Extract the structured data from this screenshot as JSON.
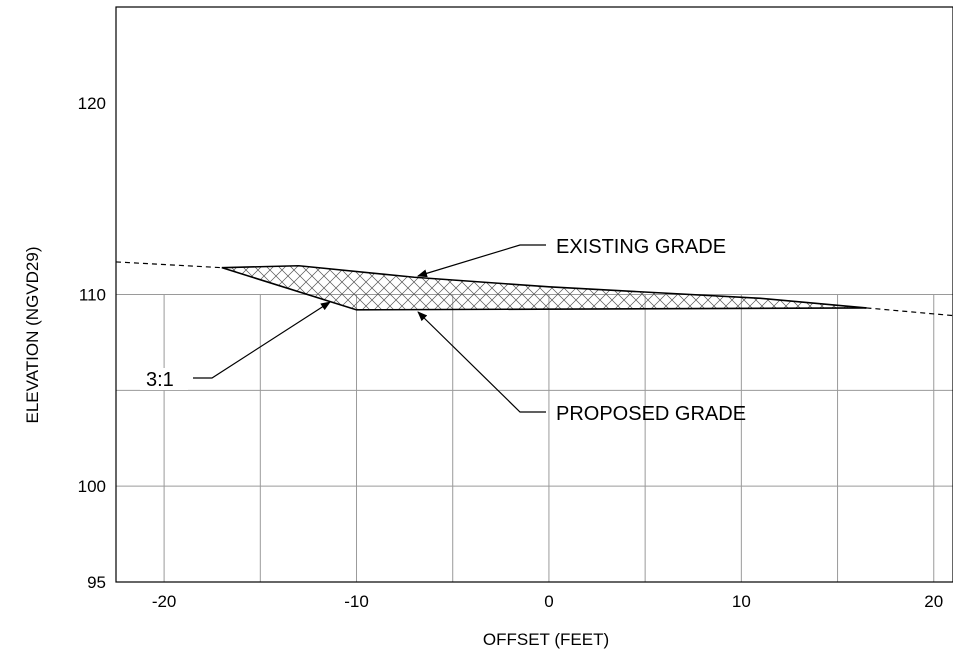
{
  "chart_data": {
    "type": "line",
    "title": "",
    "xlabel": "OFFSET (FEET)",
    "ylabel": "ELEVATION (NGVD29)",
    "xlim": [
      -22.5,
      21
    ],
    "ylim": [
      95,
      125
    ],
    "x_ticks": [
      -20,
      -10,
      0,
      10,
      20
    ],
    "x_tick_labels": [
      "-20",
      "-10",
      "0",
      "10",
      "20"
    ],
    "y_ticks": [
      95,
      100,
      110,
      120
    ],
    "y_tick_labels": [
      "95",
      "100",
      "110",
      "120"
    ],
    "grid": true,
    "series": [
      {
        "name": "EXISTING GRADE",
        "points": [
          [
            -22.5,
            111.7
          ],
          [
            -17,
            111.4
          ],
          [
            -13,
            111.5
          ],
          [
            -7,
            110.9
          ],
          [
            0,
            110.4
          ],
          [
            11,
            109.8
          ],
          [
            16.5,
            109.3
          ],
          [
            21,
            108.9
          ]
        ]
      },
      {
        "name": "PROPOSED GRADE",
        "points": [
          [
            -17,
            111.4
          ],
          [
            -10,
            109.2
          ],
          [
            16.5,
            109.3
          ]
        ]
      }
    ],
    "annotations": [
      {
        "text": "EXISTING GRADE"
      },
      {
        "text": "PROPOSED GRADE"
      },
      {
        "text": "3:1"
      }
    ]
  }
}
